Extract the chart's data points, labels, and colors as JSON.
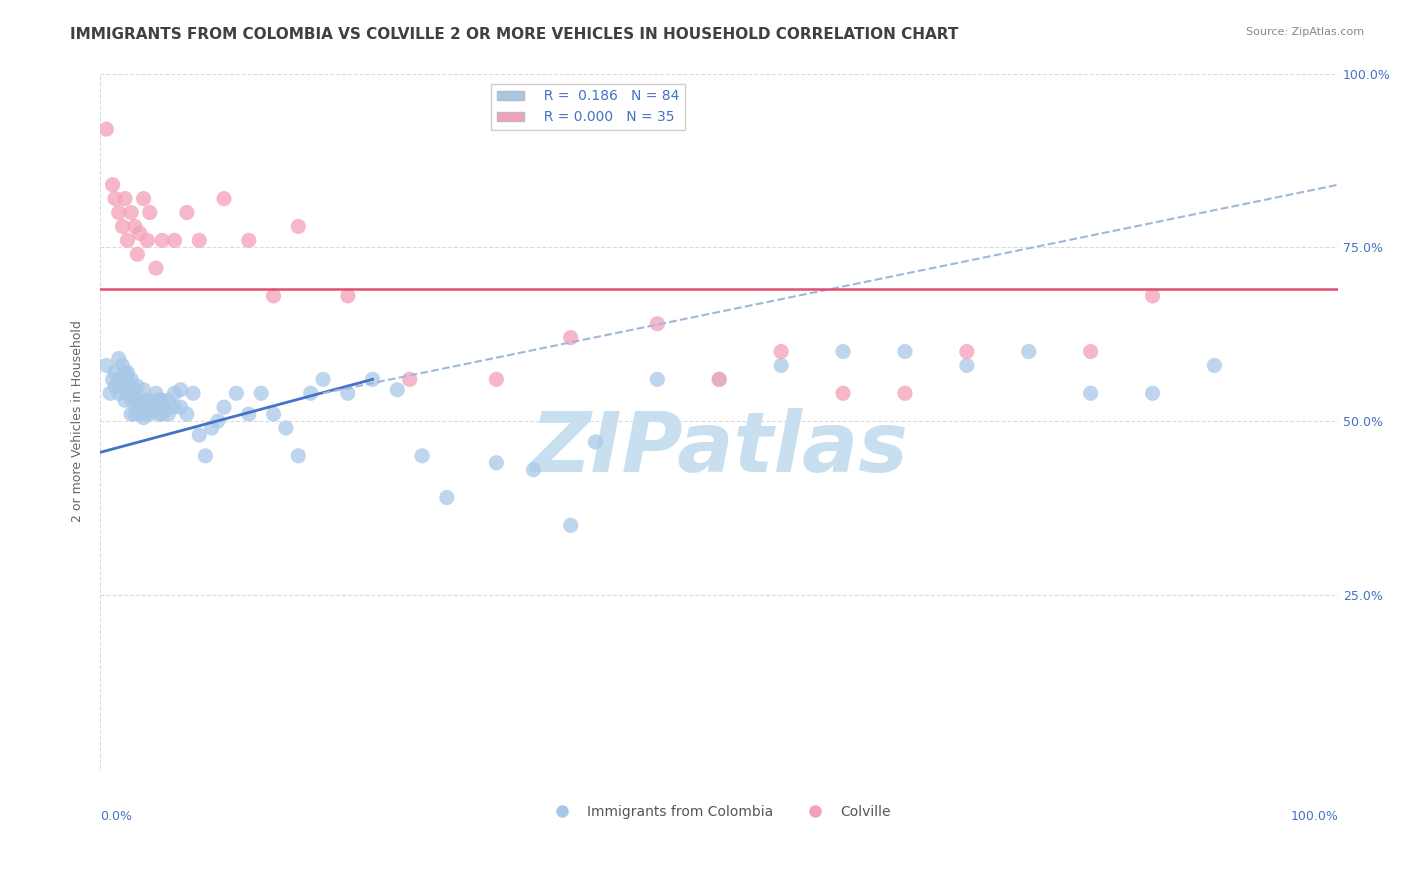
{
  "title": "IMMIGRANTS FROM COLOMBIA VS COLVILLE 2 OR MORE VEHICLES IN HOUSEHOLD CORRELATION CHART",
  "source": "Source: ZipAtlas.com",
  "ylabel": "2 or more Vehicles in Household",
  "xlim": [
    0,
    1
  ],
  "ylim": [
    0,
    1
  ],
  "yticks": [
    0.0,
    0.25,
    0.5,
    0.75,
    1.0
  ],
  "ytick_labels": [
    "",
    "25.0%",
    "50.0%",
    "75.0%",
    "100.0%"
  ],
  "blue_R": 0.186,
  "blue_N": 84,
  "pink_R": 0.0,
  "pink_N": 35,
  "blue_color": "#a8c8e8",
  "pink_color": "#f4a0b8",
  "blue_line_color": "#4472c4",
  "pink_line_color": "#e05070",
  "dashed_line_color": "#a0b8d8",
  "watermark_text": "ZIPatlas",
  "watermark_color": "#c8dff0",
  "background_color": "#ffffff",
  "grid_color": "#d8d8d8",
  "title_color": "#404040",
  "source_color": "#888888",
  "label_color": "#4472c4",
  "blue_scatter_x": [
    0.005,
    0.008,
    0.01,
    0.012,
    0.012,
    0.015,
    0.015,
    0.015,
    0.018,
    0.018,
    0.02,
    0.02,
    0.02,
    0.02,
    0.022,
    0.022,
    0.022,
    0.025,
    0.025,
    0.025,
    0.025,
    0.028,
    0.028,
    0.028,
    0.03,
    0.03,
    0.03,
    0.032,
    0.032,
    0.035,
    0.035,
    0.035,
    0.038,
    0.038,
    0.04,
    0.04,
    0.042,
    0.045,
    0.045,
    0.048,
    0.048,
    0.05,
    0.05,
    0.052,
    0.055,
    0.055,
    0.06,
    0.06,
    0.065,
    0.065,
    0.07,
    0.075,
    0.08,
    0.085,
    0.09,
    0.095,
    0.1,
    0.11,
    0.12,
    0.13,
    0.14,
    0.15,
    0.16,
    0.17,
    0.18,
    0.2,
    0.22,
    0.24,
    0.26,
    0.28,
    0.32,
    0.35,
    0.38,
    0.4,
    0.45,
    0.5,
    0.55,
    0.6,
    0.65,
    0.7,
    0.75,
    0.8,
    0.85,
    0.9
  ],
  "blue_scatter_y": [
    0.58,
    0.54,
    0.56,
    0.57,
    0.55,
    0.54,
    0.56,
    0.59,
    0.55,
    0.58,
    0.53,
    0.55,
    0.56,
    0.57,
    0.54,
    0.56,
    0.57,
    0.51,
    0.53,
    0.545,
    0.56,
    0.51,
    0.53,
    0.545,
    0.515,
    0.53,
    0.55,
    0.51,
    0.53,
    0.505,
    0.525,
    0.545,
    0.515,
    0.53,
    0.51,
    0.53,
    0.515,
    0.52,
    0.54,
    0.51,
    0.53,
    0.51,
    0.53,
    0.515,
    0.51,
    0.53,
    0.52,
    0.54,
    0.52,
    0.545,
    0.51,
    0.54,
    0.48,
    0.45,
    0.49,
    0.5,
    0.52,
    0.54,
    0.51,
    0.54,
    0.51,
    0.49,
    0.45,
    0.54,
    0.56,
    0.54,
    0.56,
    0.545,
    0.45,
    0.39,
    0.44,
    0.43,
    0.35,
    0.47,
    0.56,
    0.56,
    0.58,
    0.6,
    0.6,
    0.58,
    0.6,
    0.54,
    0.54,
    0.58
  ],
  "pink_scatter_x": [
    0.005,
    0.01,
    0.012,
    0.015,
    0.018,
    0.02,
    0.022,
    0.025,
    0.028,
    0.03,
    0.032,
    0.035,
    0.038,
    0.04,
    0.045,
    0.05,
    0.06,
    0.07,
    0.08,
    0.1,
    0.12,
    0.14,
    0.16,
    0.2,
    0.25,
    0.32,
    0.38,
    0.45,
    0.5,
    0.55,
    0.6,
    0.65,
    0.7,
    0.8,
    0.85
  ],
  "pink_scatter_y": [
    0.92,
    0.84,
    0.82,
    0.8,
    0.78,
    0.82,
    0.76,
    0.8,
    0.78,
    0.74,
    0.77,
    0.82,
    0.76,
    0.8,
    0.72,
    0.76,
    0.76,
    0.8,
    0.76,
    0.82,
    0.76,
    0.68,
    0.78,
    0.68,
    0.56,
    0.56,
    0.62,
    0.64,
    0.56,
    0.6,
    0.54,
    0.54,
    0.6,
    0.6,
    0.68
  ],
  "blue_solid_trend_x": [
    0.0,
    0.22
  ],
  "blue_solid_trend_y": [
    0.455,
    0.56
  ],
  "blue_dashed_trend_x": [
    0.18,
    1.0
  ],
  "blue_dashed_trend_y": [
    0.54,
    0.84
  ],
  "pink_trend_x": [
    0.0,
    1.0
  ],
  "pink_trend_y": [
    0.69,
    0.69
  ],
  "title_fontsize": 11,
  "axis_fontsize": 9,
  "legend_fontsize": 10
}
